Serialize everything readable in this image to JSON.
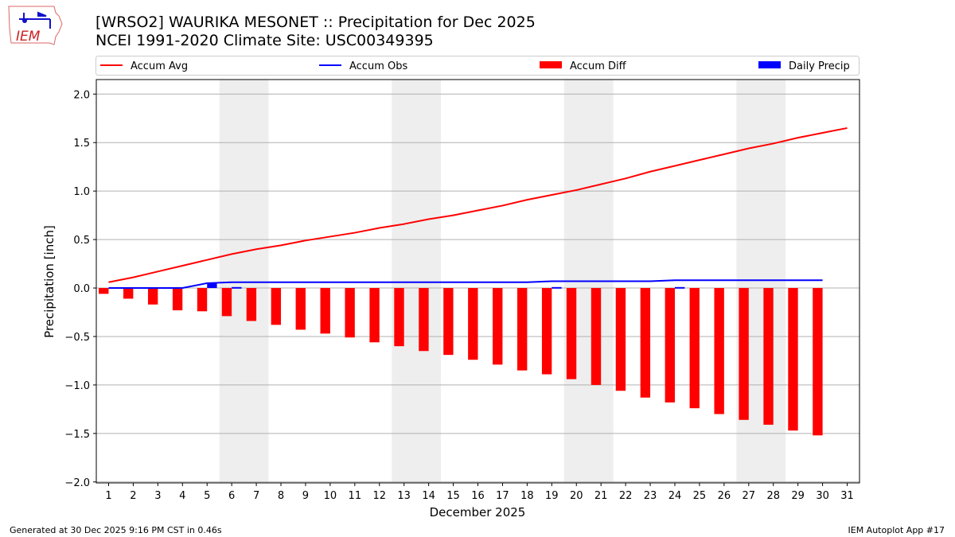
{
  "header": {
    "title_line1": "[WRSO2] WAURIKA MESONET :: Precipitation for Dec 2025",
    "title_line2": "NCEI 1991-2020 Climate Site: USC00349395",
    "logo_text": "IEM"
  },
  "footer": {
    "left": "Generated at 30 Dec 2025 9:16 PM CST in 0.46s",
    "right": "IEM Autoplot App #17"
  },
  "chart_data": {
    "type": "bar",
    "xlabel": "December 2025",
    "ylabel": "Precipitation [inch]",
    "xlim": [
      0.5,
      31.5
    ],
    "ylim": [
      -2.01,
      2.15
    ],
    "grid": "horizontal",
    "legend_position": "top",
    "x_ticks": [
      "1",
      "2",
      "3",
      "4",
      "5",
      "6",
      "7",
      "8",
      "9",
      "10",
      "11",
      "12",
      "13",
      "14",
      "15",
      "16",
      "17",
      "18",
      "19",
      "20",
      "21",
      "22",
      "23",
      "24",
      "25",
      "26",
      "27",
      "28",
      "29",
      "30",
      "31"
    ],
    "y_ticks": [
      "2.0",
      "1.5",
      "1.0",
      "0.5",
      "0.0",
      "−0.5",
      "−1.0",
      "−1.5",
      "−2.0"
    ],
    "y_tick_values": [
      2.0,
      1.5,
      1.0,
      0.5,
      0.0,
      -0.5,
      -1.0,
      -1.5,
      -2.0
    ],
    "weekend_shading": [
      [
        5.5,
        7.5
      ],
      [
        12.5,
        14.5
      ],
      [
        19.5,
        21.5
      ],
      [
        26.5,
        28.5
      ]
    ],
    "shading_color": "#eeeeee",
    "series": [
      {
        "name": "Accum Avg",
        "kind": "line",
        "color": "#ff0000",
        "x": [
          1,
          2,
          3,
          4,
          5,
          6,
          7,
          8,
          9,
          10,
          11,
          12,
          13,
          14,
          15,
          16,
          17,
          18,
          19,
          20,
          21,
          22,
          23,
          24,
          25,
          26,
          27,
          28,
          29,
          30,
          31
        ],
        "values": [
          0.06,
          0.11,
          0.17,
          0.23,
          0.29,
          0.35,
          0.4,
          0.44,
          0.49,
          0.53,
          0.57,
          0.62,
          0.66,
          0.71,
          0.75,
          0.8,
          0.85,
          0.91,
          0.96,
          1.01,
          1.07,
          1.13,
          1.2,
          1.26,
          1.32,
          1.38,
          1.44,
          1.49,
          1.55,
          1.6,
          1.65
        ]
      },
      {
        "name": "Accum Obs",
        "kind": "line",
        "color": "#0000ff",
        "x": [
          1,
          2,
          3,
          4,
          5,
          6,
          7,
          8,
          9,
          10,
          11,
          12,
          13,
          14,
          15,
          16,
          17,
          18,
          19,
          20,
          21,
          22,
          23,
          24,
          25,
          26,
          27,
          28,
          29,
          30
        ],
        "values": [
          0,
          0,
          0,
          0,
          0.05,
          0.06,
          0.06,
          0.06,
          0.06,
          0.06,
          0.06,
          0.06,
          0.06,
          0.06,
          0.06,
          0.06,
          0.06,
          0.06,
          0.07,
          0.07,
          0.07,
          0.07,
          0.07,
          0.08,
          0.08,
          0.08,
          0.08,
          0.08,
          0.08,
          0.08
        ]
      },
      {
        "name": "Accum Diff",
        "kind": "bar",
        "color": "#ff0000",
        "x": [
          1,
          2,
          3,
          4,
          5,
          6,
          7,
          8,
          9,
          10,
          11,
          12,
          13,
          14,
          15,
          16,
          17,
          18,
          19,
          20,
          21,
          22,
          23,
          24,
          25,
          26,
          27,
          28,
          29,
          30
        ],
        "values": [
          -0.06,
          -0.11,
          -0.17,
          -0.23,
          -0.24,
          -0.29,
          -0.34,
          -0.38,
          -0.43,
          -0.47,
          -0.51,
          -0.56,
          -0.6,
          -0.65,
          -0.69,
          -0.74,
          -0.79,
          -0.85,
          -0.89,
          -0.94,
          -1.0,
          -1.06,
          -1.13,
          -1.18,
          -1.24,
          -1.3,
          -1.36,
          -1.41,
          -1.47,
          -1.52
        ]
      },
      {
        "name": "Daily Precip",
        "kind": "bar",
        "color": "#0000ff",
        "x": [
          5,
          6,
          19,
          24
        ],
        "values": [
          0.05,
          0.01,
          0.01,
          0.01
        ]
      }
    ]
  }
}
